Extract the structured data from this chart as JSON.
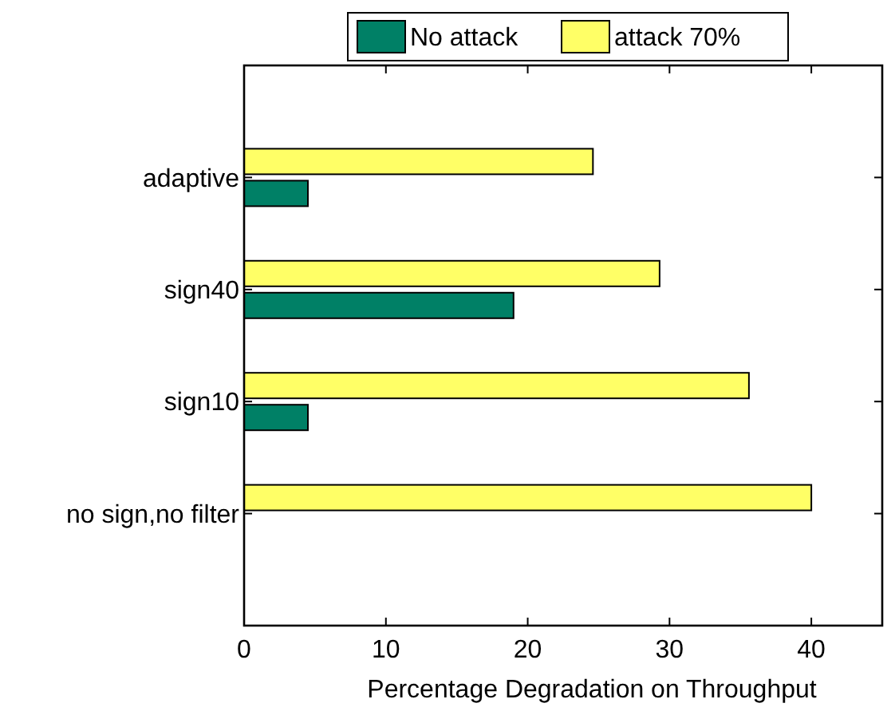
{
  "chart_data": {
    "type": "bar",
    "orientation": "horizontal",
    "xlabel": "Percentage Degradation on Throughput",
    "categories": [
      "adaptive",
      "sign40",
      "sign10",
      "no sign,no filter"
    ],
    "series": [
      {
        "name": "No attack",
        "color": "#008066",
        "values": [
          4.5,
          19.0,
          4.5,
          0
        ]
      },
      {
        "name": "attack 70%",
        "color": "#ffff66",
        "values": [
          24.6,
          29.3,
          35.6,
          40.0
        ]
      }
    ],
    "xlim": [
      0,
      45
    ],
    "xticks": [
      0,
      10,
      20,
      30,
      40
    ],
    "legend": "top",
    "grid": false
  }
}
